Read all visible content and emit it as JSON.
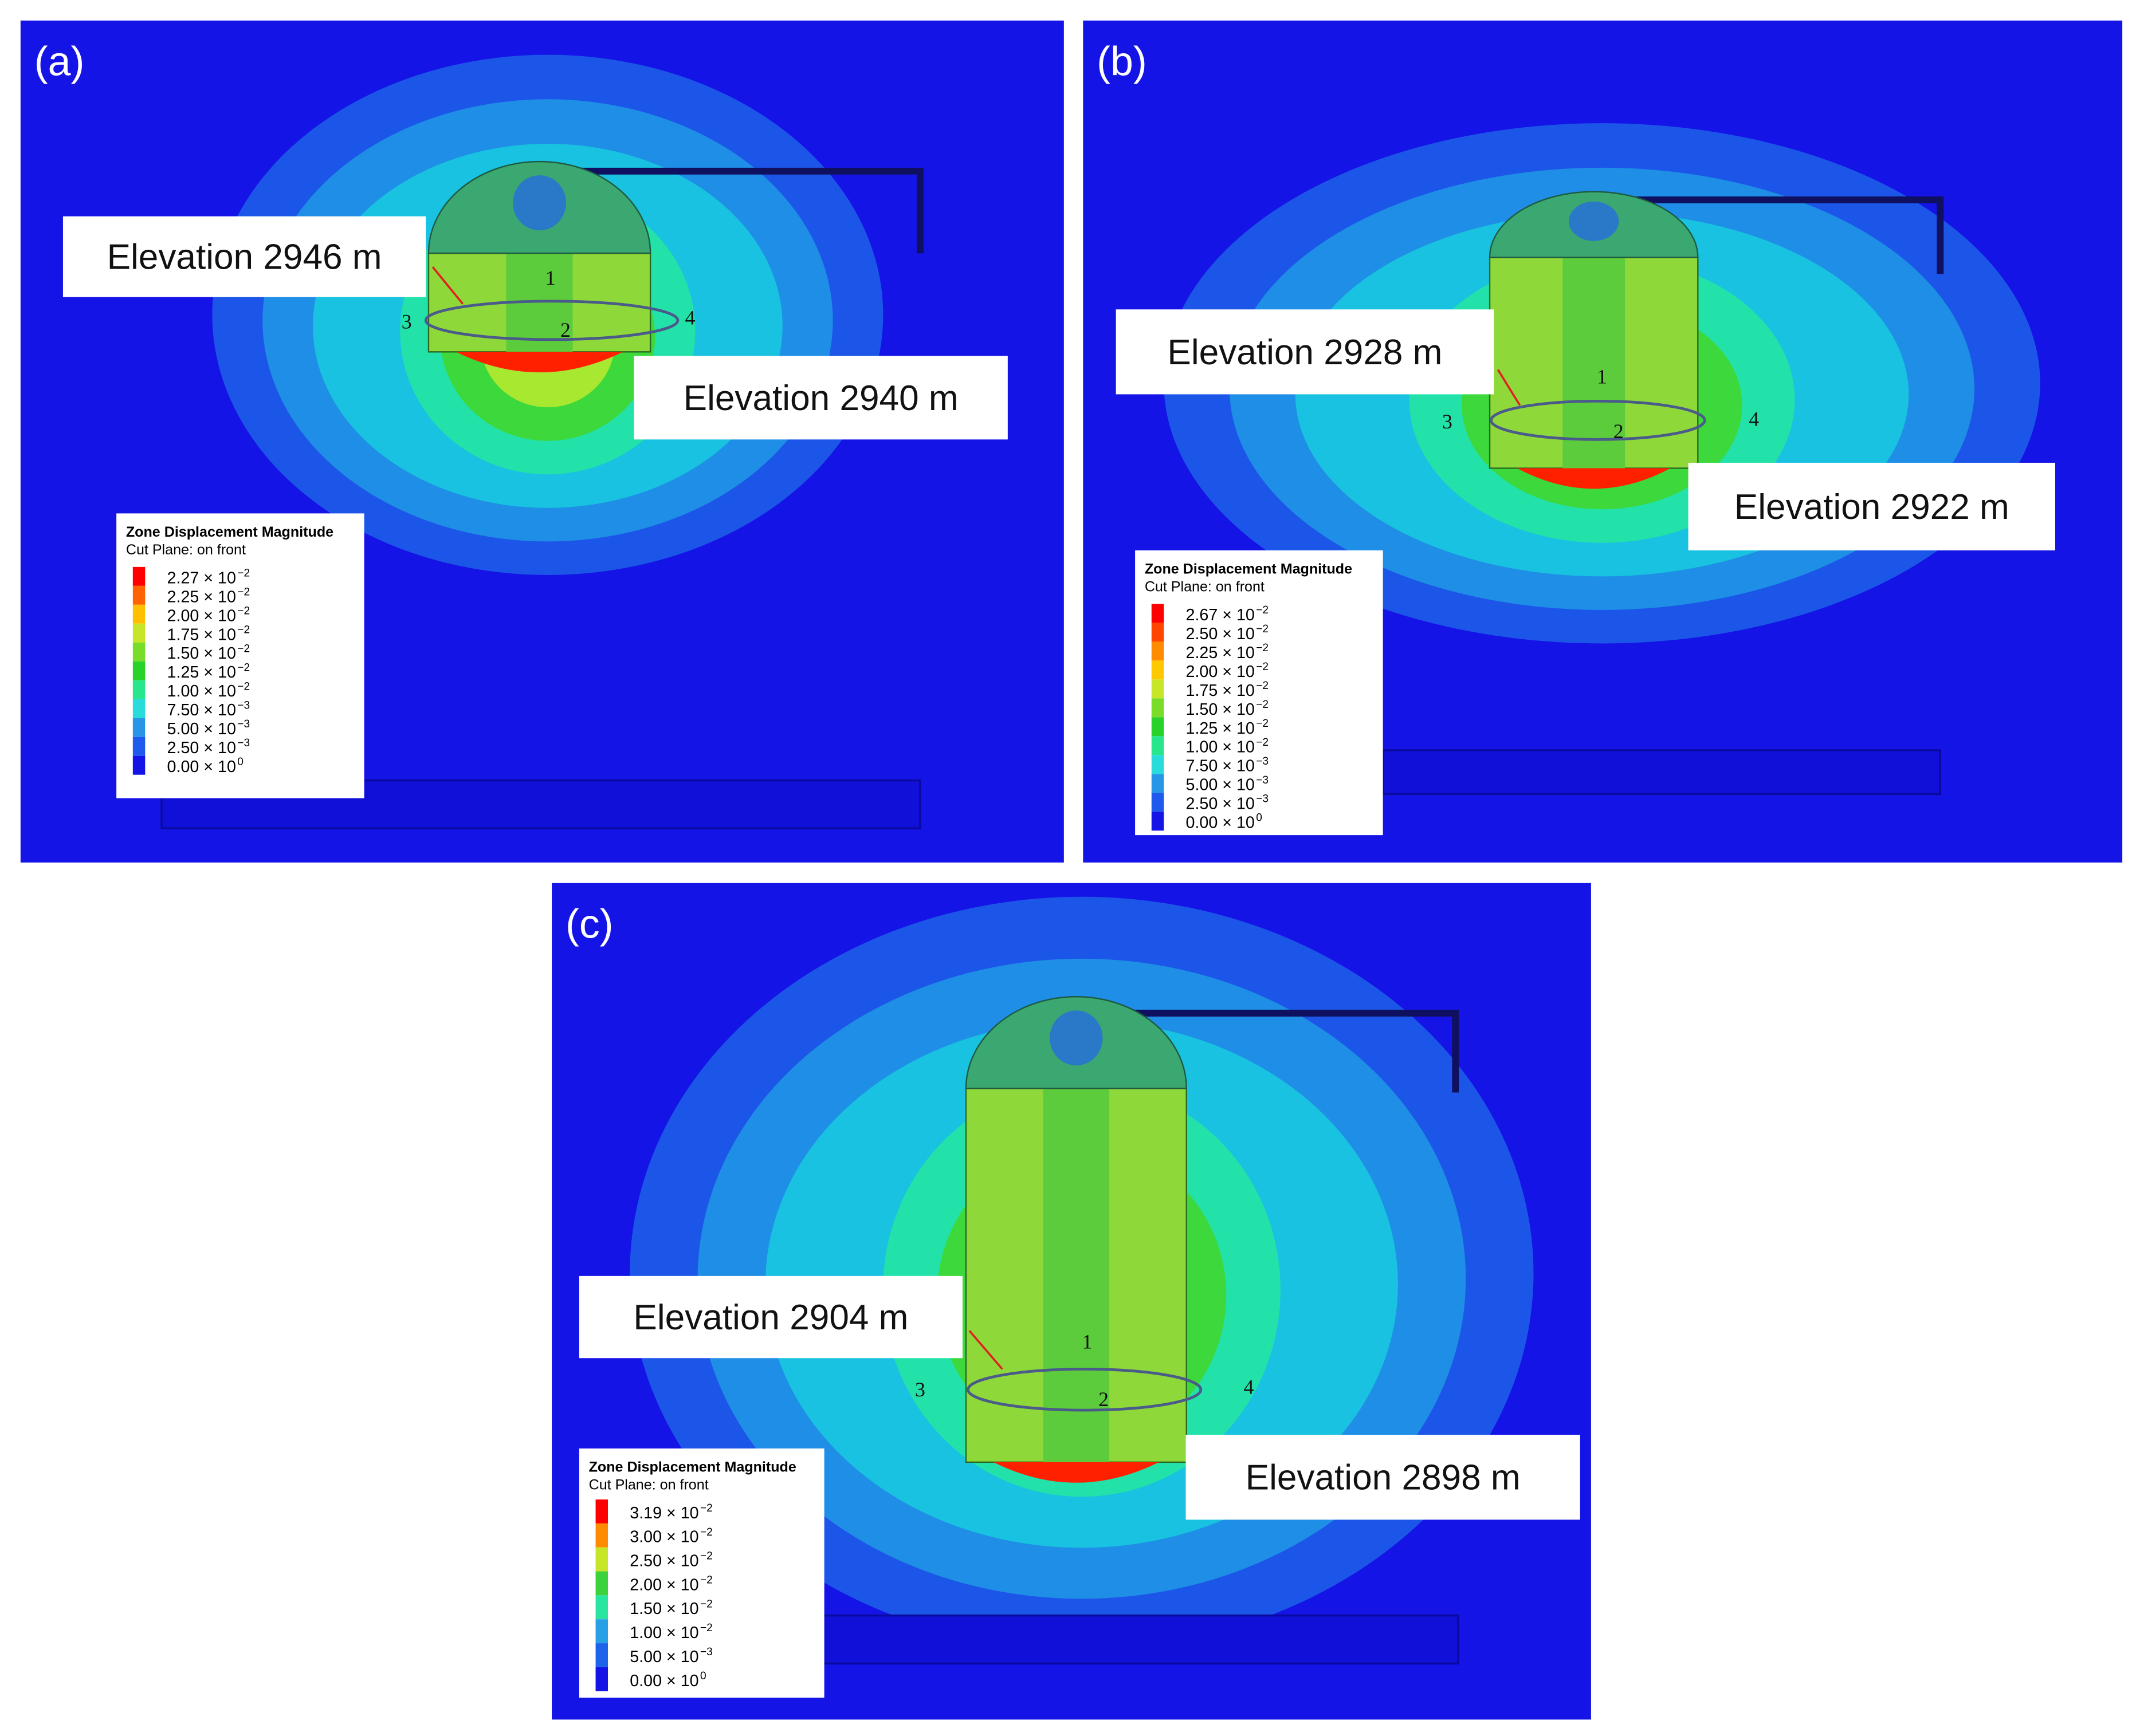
{
  "panels": [
    {
      "label": "(a)",
      "elevations": [
        "Elevation 2946 m",
        "Elevation 2940 m"
      ],
      "points": [
        "1",
        "2",
        "3",
        "4"
      ],
      "legend": {
        "title": "Zone Displacement Magnitude",
        "subtitle": "Cut Plane: on front",
        "entries": [
          {
            "text": "2.27 × 10",
            "exponent": "−2",
            "color": "#ff0000"
          },
          {
            "text": "2.25 × 10",
            "exponent": "−2",
            "color": "#ff6400"
          },
          {
            "text": "2.00 × 10",
            "exponent": "−2",
            "color": "#ffc000"
          },
          {
            "text": "1.75 × 10",
            "exponent": "−2",
            "color": "#c8e628"
          },
          {
            "text": "1.50 × 10",
            "exponent": "−2",
            "color": "#78dc28"
          },
          {
            "text": "1.25 × 10",
            "exponent": "−2",
            "color": "#28d228"
          },
          {
            "text": "1.00 × 10",
            "exponent": "−2",
            "color": "#28e68c"
          },
          {
            "text": "7.50 × 10",
            "exponent": "−3",
            "color": "#28dcdc"
          },
          {
            "text": "5.00 × 10",
            "exponent": "−3",
            "color": "#2896e6"
          },
          {
            "text": "2.50 × 10",
            "exponent": "−3",
            "color": "#1e5aeb"
          },
          {
            "text": "0.00 × 10",
            "exponent": "0",
            "color": "#1414e6"
          }
        ]
      }
    },
    {
      "label": "(b)",
      "elevations": [
        "Elevation 2928 m",
        "Elevation 2922 m"
      ],
      "points": [
        "1",
        "2",
        "3",
        "4"
      ],
      "legend": {
        "title": "Zone Displacement Magnitude",
        "subtitle": "Cut Plane: on front",
        "entries": [
          {
            "text": "2.67 × 10",
            "exponent": "−2",
            "color": "#ff0000"
          },
          {
            "text": "2.50 × 10",
            "exponent": "−2",
            "color": "#ff4600"
          },
          {
            "text": "2.25 × 10",
            "exponent": "−2",
            "color": "#ff8c00"
          },
          {
            "text": "2.00 × 10",
            "exponent": "−2",
            "color": "#ffc800"
          },
          {
            "text": "1.75 × 10",
            "exponent": "−2",
            "color": "#c8e628"
          },
          {
            "text": "1.50 × 10",
            "exponent": "−2",
            "color": "#78dc28"
          },
          {
            "text": "1.25 × 10",
            "exponent": "−2",
            "color": "#28d228"
          },
          {
            "text": "1.00 × 10",
            "exponent": "−2",
            "color": "#28e68c"
          },
          {
            "text": "7.50 × 10",
            "exponent": "−3",
            "color": "#28dcdc"
          },
          {
            "text": "5.00 × 10",
            "exponent": "−3",
            "color": "#2896e6"
          },
          {
            "text": "2.50 × 10",
            "exponent": "−3",
            "color": "#1e5aeb"
          },
          {
            "text": "0.00 × 10",
            "exponent": "0",
            "color": "#1414e6"
          }
        ]
      }
    },
    {
      "label": "(c)",
      "elevations": [
        "Elevation 2904 m",
        "Elevation 2898 m"
      ],
      "points": [
        "1",
        "2",
        "3",
        "4"
      ],
      "legend": {
        "title": "Zone Displacement Magnitude",
        "subtitle": "Cut Plane: on front",
        "entries": [
          {
            "text": "3.19 × 10",
            "exponent": "−2",
            "color": "#ff0000"
          },
          {
            "text": "3.00 × 10",
            "exponent": "−2",
            "color": "#ff8c00"
          },
          {
            "text": "2.50 × 10",
            "exponent": "−2",
            "color": "#c8e628"
          },
          {
            "text": "2.00 × 10",
            "exponent": "−2",
            "color": "#3cd23c"
          },
          {
            "text": "1.50 × 10",
            "exponent": "−2",
            "color": "#28e6a0"
          },
          {
            "text": "1.00 × 10",
            "exponent": "−2",
            "color": "#28a0e6"
          },
          {
            "text": "5.00 × 10",
            "exponent": "−3",
            "color": "#1e64eb"
          },
          {
            "text": "0.00 × 10",
            "exponent": "0",
            "color": "#1414e6"
          }
        ]
      }
    }
  ]
}
